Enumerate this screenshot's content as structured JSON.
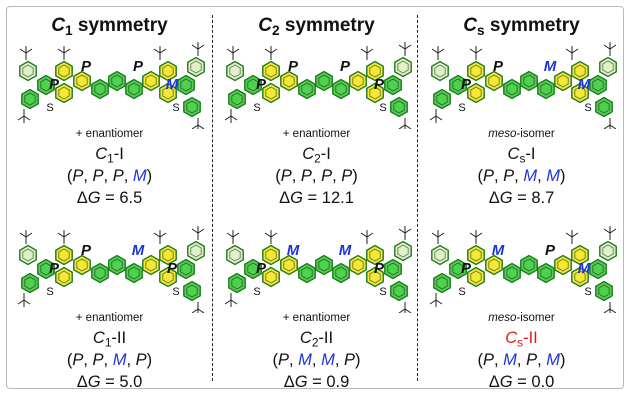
{
  "columns": [
    {
      "heading": {
        "letter": "C",
        "sub": "1",
        "rest": " symmetry"
      },
      "panels": [
        {
          "variant": "main-plain",
          "sym": {
            "P1": "P",
            "P2": "P",
            "P3": "P",
            "M": "M"
          },
          "note": "+ enantiomer",
          "label": {
            "letter": "C",
            "sub": "1",
            "suffix": "-I"
          },
          "config": [
            {
              "t": "P",
              "c": "k"
            },
            {
              "t": "P",
              "c": "k"
            },
            {
              "t": "P",
              "c": "k"
            },
            {
              "t": "M",
              "c": "b"
            }
          ],
          "dg": {
            "symbol": "ΔG",
            "value": "6.5"
          }
        },
        {
          "variant": "main-plain",
          "sym": {
            "P1": "P",
            "P2": "P",
            "P3": "M",
            "M": "P"
          },
          "note": "+ enantiomer",
          "label": {
            "letter": "C",
            "sub": "1",
            "suffix": "-II"
          },
          "config": [
            {
              "t": "P",
              "c": "k"
            },
            {
              "t": "P",
              "c": "k"
            },
            {
              "t": "M",
              "c": "b"
            },
            {
              "t": "P",
              "c": "k"
            }
          ],
          "dg": {
            "symbol": "ΔG",
            "value": "5.0"
          }
        }
      ]
    },
    {
      "heading": {
        "letter": "C",
        "sub": "2",
        "rest": " symmetry"
      },
      "panels": [
        {
          "variant": "main-plain",
          "sym": {
            "P1": "P",
            "P2": "P",
            "P3": "P",
            "M": "P"
          },
          "note": "+ enantiomer",
          "label": {
            "letter": "C",
            "sub": "2",
            "suffix": "-I"
          },
          "config": [
            {
              "t": "P",
              "c": "k"
            },
            {
              "t": "P",
              "c": "k"
            },
            {
              "t": "P",
              "c": "k"
            },
            {
              "t": "P",
              "c": "k"
            }
          ],
          "dg": {
            "symbol": "ΔG",
            "value": "12.1"
          }
        },
        {
          "variant": "main-plain",
          "sym": {
            "P1": "P",
            "P2": "M",
            "P3": "M",
            "M": "P"
          },
          "note": "+ enantiomer",
          "label": {
            "letter": "C",
            "sub": "2",
            "suffix": "-II"
          },
          "config": [
            {
              "t": "P",
              "c": "k"
            },
            {
              "t": "M",
              "c": "b"
            },
            {
              "t": "M",
              "c": "b"
            },
            {
              "t": "P",
              "c": "k"
            }
          ],
          "dg": {
            "symbol": "ΔG",
            "value": "0.9"
          }
        }
      ]
    },
    {
      "heading": {
        "letter": "C",
        "sub": "s",
        "rest": " symmetry"
      },
      "panels": [
        {
          "variant": "main-italic",
          "sym": {
            "P1": "P",
            "P2": "P",
            "P3": "M",
            "M": "M"
          },
          "note": "meso-isomer",
          "label": {
            "letter": "C",
            "sub": "s",
            "suffix": "-I"
          },
          "config": [
            {
              "t": "P",
              "c": "k"
            },
            {
              "t": "P",
              "c": "k"
            },
            {
              "t": "M",
              "c": "b"
            },
            {
              "t": "M",
              "c": "b"
            }
          ],
          "dg": {
            "symbol": "ΔG",
            "value": "8.7"
          }
        },
        {
          "variant": "main-italic",
          "sym": {
            "P1": "P",
            "P2": "M",
            "P3": "P",
            "M": "M"
          },
          "note": "meso-isomer",
          "label": {
            "letter": "C",
            "sub": "s",
            "suffix": "-II",
            "accent": "#e11a1a"
          },
          "config": [
            {
              "t": "P",
              "c": "k"
            },
            {
              "t": "M",
              "c": "b"
            },
            {
              "t": "P",
              "c": "k"
            },
            {
              "t": "M",
              "c": "b"
            }
          ],
          "dg": {
            "symbol": "ΔG",
            "value": "0.0"
          }
        }
      ]
    }
  ],
  "molecule": {
    "bridge_atom": "S",
    "colors": {
      "ring": "#4fd14f",
      "ring_edge": "#1c7a1c",
      "yellow": "#f2e837",
      "pale": "#dff2c7"
    }
  }
}
